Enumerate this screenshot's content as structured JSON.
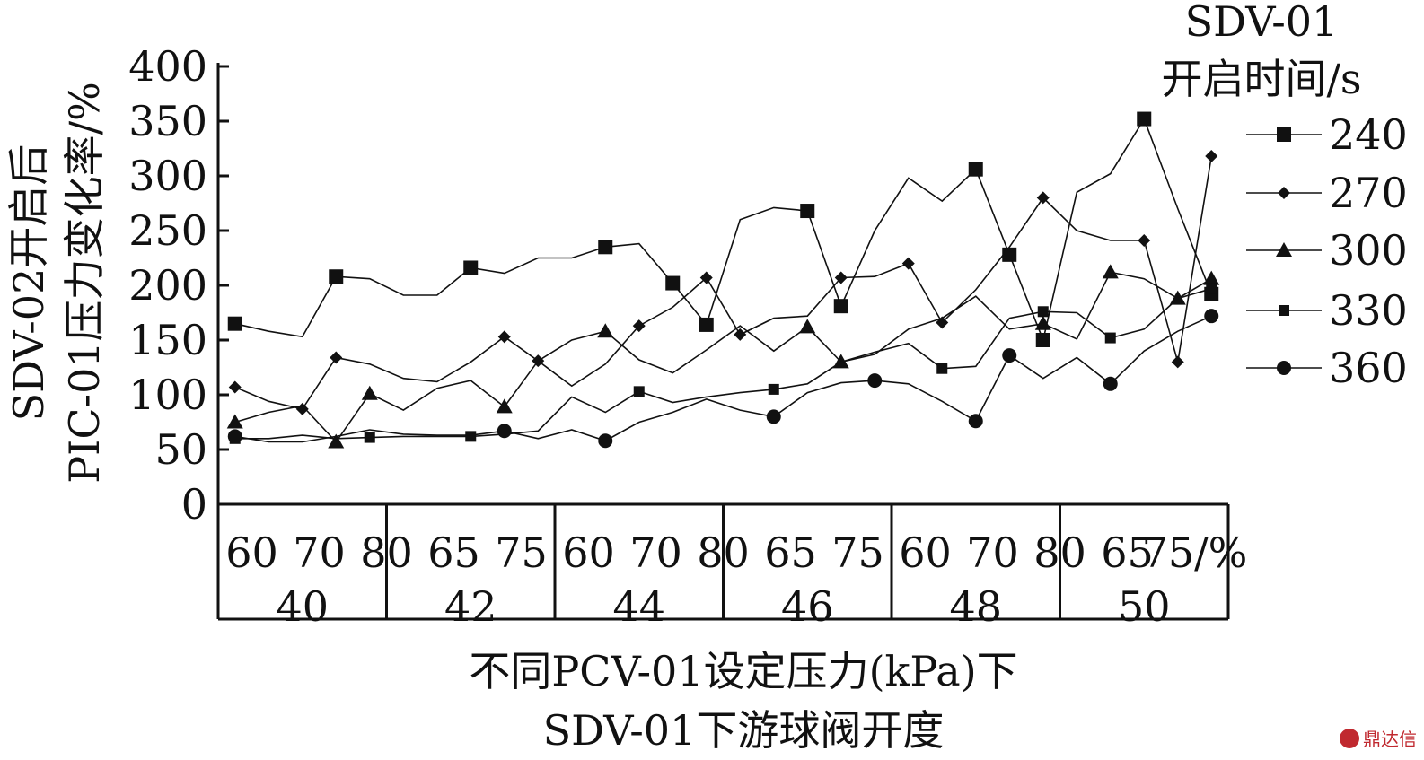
{
  "chart_data": {
    "type": "line",
    "ylabel_lines": [
      "SDV-02开启后",
      "PIC-01压力变化率/%"
    ],
    "xlabel_lines": [
      "不同PCV-01设定压力(kPa)下",
      "SDV-01下游球阀开度"
    ],
    "ylim": [
      0,
      400
    ],
    "yticks": [
      "0",
      "50",
      "100",
      "150",
      "200",
      "250",
      "300",
      "350",
      "400"
    ],
    "x_opening_labels": [
      "60",
      "70",
      "80",
      "65",
      "75",
      "60",
      "70",
      "80",
      "65",
      "75",
      "60",
      "70",
      "80",
      "65",
      "75/%"
    ],
    "pressure_groups": [
      "40",
      "42",
      "44",
      "46",
      "48",
      "50"
    ],
    "legend_title_lines": [
      "SDV-01",
      "开启时间/s"
    ],
    "grid": false,
    "legend_position": "right",
    "x_count": 30,
    "series": [
      {
        "name": "240",
        "marker": "square-large",
        "values": [
          165,
          158,
          153,
          208,
          206,
          191,
          191,
          216,
          211,
          225,
          225,
          235,
          238,
          202,
          164,
          260,
          271,
          268,
          181,
          250,
          298,
          277,
          306,
          228,
          150,
          285,
          302,
          352,
          270,
          192
        ]
      },
      {
        "name": "270",
        "marker": "diamond",
        "values": [
          107,
          94,
          87,
          134,
          128,
          115,
          112,
          130,
          153,
          131,
          108,
          128,
          163,
          180,
          207,
          155,
          170,
          172,
          207,
          208,
          220,
          166,
          196,
          235,
          280,
          250,
          241,
          241,
          130,
          318
        ]
      },
      {
        "name": "300",
        "marker": "triangle",
        "values": [
          75,
          84,
          90,
          57,
          101,
          86,
          106,
          113,
          89,
          131,
          150,
          158,
          132,
          120,
          141,
          163,
          140,
          162,
          130,
          137,
          160,
          170,
          190,
          160,
          165,
          151,
          212,
          206,
          188,
          206
        ]
      },
      {
        "name": "330",
        "marker": "square-small",
        "values": [
          60,
          60,
          63,
          60,
          61,
          62,
          62,
          62,
          64,
          67,
          98,
          84,
          103,
          93,
          98,
          102,
          105,
          110,
          130,
          139,
          147,
          124,
          126,
          170,
          176,
          175,
          152,
          160,
          188,
          197
        ]
      },
      {
        "name": "360",
        "marker": "circle",
        "values": [
          62,
          57,
          57,
          62,
          68,
          64,
          63,
          63,
          67,
          60,
          68,
          58,
          75,
          84,
          96,
          86,
          80,
          102,
          111,
          113,
          110,
          94,
          76,
          136,
          115,
          134,
          110,
          140,
          158,
          172
        ]
      }
    ]
  },
  "watermark": {
    "text": "鼎达信"
  }
}
